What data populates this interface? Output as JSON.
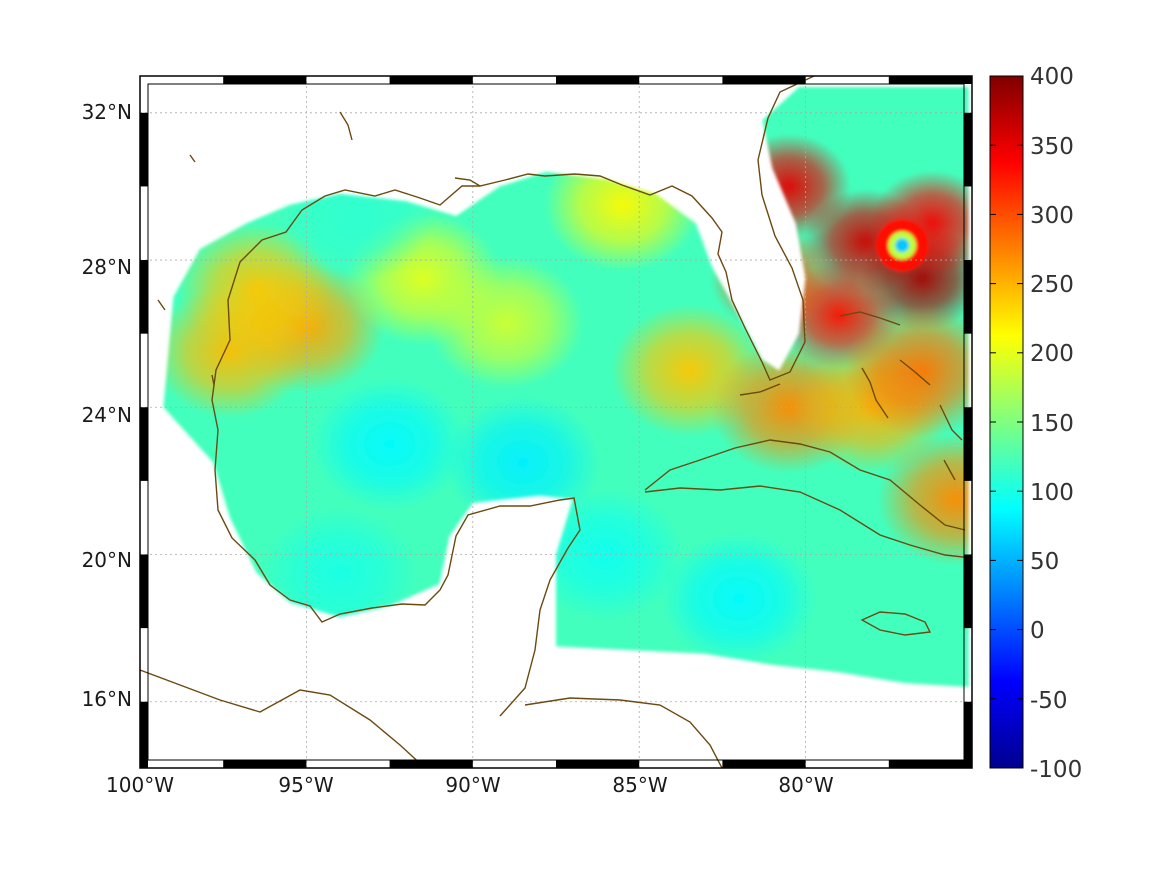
{
  "chart_data": {
    "type": "heatmap",
    "title": "",
    "xlabel": "",
    "ylabel": "",
    "x_ticks": [
      "100°W",
      "95°W",
      "90°W",
      "85°W",
      "80°W"
    ],
    "x_tick_values": [
      -100,
      -95,
      -90,
      -85,
      -80
    ],
    "y_ticks": [
      "32°N",
      "28°N",
      "24°N",
      "20°N",
      "16°N"
    ],
    "y_tick_values": [
      32,
      28,
      24,
      20,
      16
    ],
    "xlim": [
      -100,
      -75
    ],
    "ylim": [
      14.2,
      33
    ],
    "grid": true,
    "colormap": "jet",
    "colorbar": {
      "ticks": [
        "400",
        "350",
        "300",
        "250",
        "200",
        "150",
        "100",
        "50",
        "0",
        "-50",
        "-100"
      ],
      "tick_values": [
        400,
        350,
        300,
        250,
        200,
        150,
        100,
        50,
        0,
        -50,
        -100
      ],
      "range": [
        -100,
        400
      ]
    },
    "field_blobs": [
      {
        "lon": -95.0,
        "lat": 26.2,
        "value": 255
      },
      {
        "lon": -97.3,
        "lat": 25.5,
        "value": 245
      },
      {
        "lon": -96.5,
        "lat": 27.2,
        "value": 240
      },
      {
        "lon": -91.5,
        "lat": 27.5,
        "value": 200
      },
      {
        "lon": -89.0,
        "lat": 26.3,
        "value": 190
      },
      {
        "lon": -93.5,
        "lat": 29.2,
        "value": 110
      },
      {
        "lon": -85.5,
        "lat": 29.5,
        "value": 215
      },
      {
        "lon": -83.5,
        "lat": 25.0,
        "value": 240
      },
      {
        "lon": -80.5,
        "lat": 24.0,
        "value": 270
      },
      {
        "lon": -78.0,
        "lat": 24.0,
        "value": 250
      },
      {
        "lon": -80.5,
        "lat": 30.0,
        "value": 350
      },
      {
        "lon": -78.2,
        "lat": 28.5,
        "value": 360
      },
      {
        "lon": -76.5,
        "lat": 27.5,
        "value": 380
      },
      {
        "lon": -76.2,
        "lat": 29.0,
        "value": 340
      },
      {
        "lon": -79.0,
        "lat": 26.5,
        "value": 330
      },
      {
        "lon": -81.0,
        "lat": 27.5,
        "value": 300
      },
      {
        "lon": -76.5,
        "lat": 25.0,
        "value": 280
      },
      {
        "lon": -75.5,
        "lat": 21.5,
        "value": 270
      },
      {
        "lon": -92.5,
        "lat": 23.0,
        "value": 85
      },
      {
        "lon": -88.5,
        "lat": 22.5,
        "value": 80
      },
      {
        "lon": -82.0,
        "lat": 18.8,
        "value": 85
      },
      {
        "lon": -86.0,
        "lat": 20.0,
        "value": 95
      },
      {
        "lon": -94.0,
        "lat": 19.5,
        "value": 100
      }
    ],
    "eye": {
      "lon": -77.1,
      "lat": 28.4,
      "value": 60
    },
    "base_value": 120
  }
}
